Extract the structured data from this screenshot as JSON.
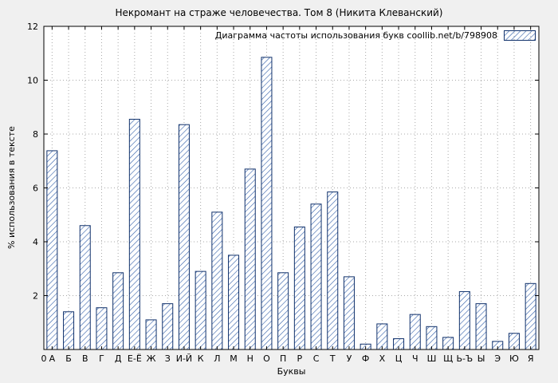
{
  "chart_data": {
    "type": "bar",
    "title": "Некромант на страже человечества. Том 8 (Никита Клеванский)",
    "legend": "Диаграмма частоты использования букв coollib.net/b/798908",
    "xlabel": "Буквы",
    "ylabel": "% использования в тексте",
    "origin_label": "0",
    "ylim": [
      0,
      12
    ],
    "yticks": [
      0,
      2,
      4,
      6,
      8,
      10,
      12
    ],
    "grid": true,
    "legend_position": "top-right-inside",
    "categories": [
      "А",
      "Б",
      "В",
      "Г",
      "Д",
      "Е-Ё",
      "Ж",
      "З",
      "И-Й",
      "К",
      "Л",
      "М",
      "Н",
      "О",
      "П",
      "Р",
      "С",
      "Т",
      "У",
      "Ф",
      "Х",
      "Ц",
      "Ч",
      "Ш",
      "Щ",
      "Ь-Ъ",
      "Ы",
      "Э",
      "Ю",
      "Я"
    ],
    "values": [
      7.38,
      1.4,
      4.6,
      1.55,
      2.85,
      8.55,
      1.1,
      1.7,
      8.35,
      2.9,
      5.1,
      3.5,
      6.7,
      10.85,
      2.85,
      4.55,
      5.4,
      5.85,
      2.7,
      0.2,
      0.95,
      0.4,
      1.3,
      0.85,
      0.45,
      2.15,
      1.7,
      0.3,
      0.6,
      2.45
    ],
    "colors": {
      "background": "#f0f0f0",
      "plot_background": "#ffffff",
      "bar_outline": "#10316b",
      "hatch": "#2f5da8",
      "grid": "#a8a8a8",
      "frame": "#000000"
    }
  }
}
